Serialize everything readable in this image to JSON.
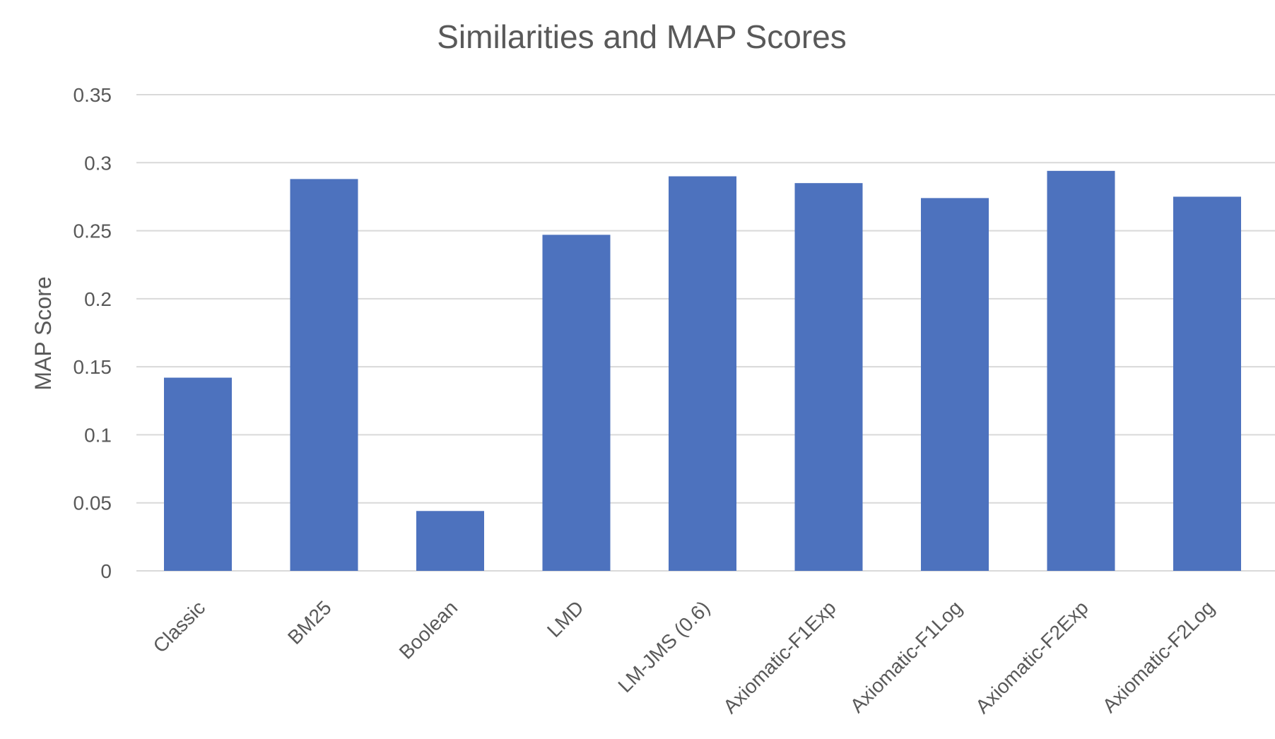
{
  "chart_data": {
    "type": "bar",
    "title": "Similarities and MAP Scores",
    "xlabel": "",
    "ylabel": "MAP Score",
    "categories": [
      "Classic",
      "BM25",
      "Boolean",
      "LMD",
      "LM-JMS (0.6)",
      "Axiomatic-F1Exp",
      "Axiomatic-F1Log",
      "Axiomatic-F2Exp",
      "Axiomatic-F2Log"
    ],
    "values": [
      0.142,
      0.288,
      0.044,
      0.247,
      0.29,
      0.285,
      0.274,
      0.294,
      0.275
    ],
    "ylim": [
      0,
      0.35
    ],
    "yticks": [
      "0",
      "0.05",
      "0.1",
      "0.15",
      "0.2",
      "0.25",
      "0.3",
      "0.35"
    ],
    "grid": true,
    "legend": "none",
    "bar_color": "#4d72be"
  }
}
